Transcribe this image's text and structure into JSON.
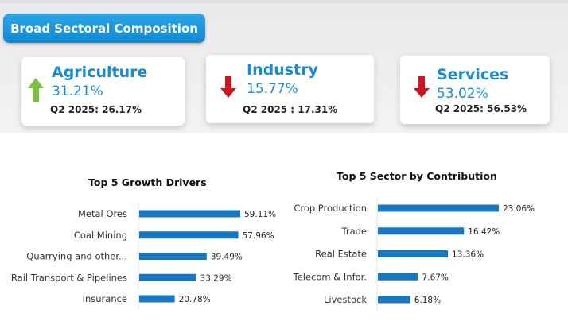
{
  "header": {
    "title": "Broad Sectoral Composition"
  },
  "cards": [
    {
      "name": "Agriculture",
      "value": "31.21%",
      "q2": "Q2 2025:  26.17%",
      "trend": "up"
    },
    {
      "name": "Industry",
      "value": "15.77%",
      "q2": "Q2 2025 : 17.31%",
      "trend": "down"
    },
    {
      "name": "Services",
      "value": "53.02%",
      "q2": "Q2 2025: 56.53%",
      "trend": "down"
    }
  ],
  "colors": {
    "accent": "#1b8bd0",
    "bar": "#1877c2",
    "up": "#7ac142",
    "down": "#c8171e"
  },
  "chart_data": [
    {
      "type": "bar",
      "orientation": "horizontal",
      "title": "Top 5 Growth Drivers",
      "categories": [
        "Metal Ores",
        "Coal Mining",
        "Quarrying and other...",
        "Rail Transport & Pipelines",
        "Insurance"
      ],
      "values": [
        59.11,
        57.96,
        39.49,
        33.29,
        20.78
      ],
      "labels": [
        "59.11%",
        "57.96%",
        "39.49%",
        "33.29%",
        "20.78%"
      ],
      "xlim": [
        0,
        100
      ]
    },
    {
      "type": "bar",
      "orientation": "horizontal",
      "title": "Top 5 Sector by Contribution",
      "categories": [
        "Crop Production",
        "Trade",
        "Real Estate",
        "Telecom & Infor.",
        "Livestock"
      ],
      "values": [
        23.06,
        16.42,
        13.36,
        7.67,
        6.18
      ],
      "labels": [
        "23.06%",
        "16.42%",
        "13.36%",
        "7.67%",
        "6.18%"
      ],
      "xlim": [
        0,
        38
      ]
    }
  ]
}
